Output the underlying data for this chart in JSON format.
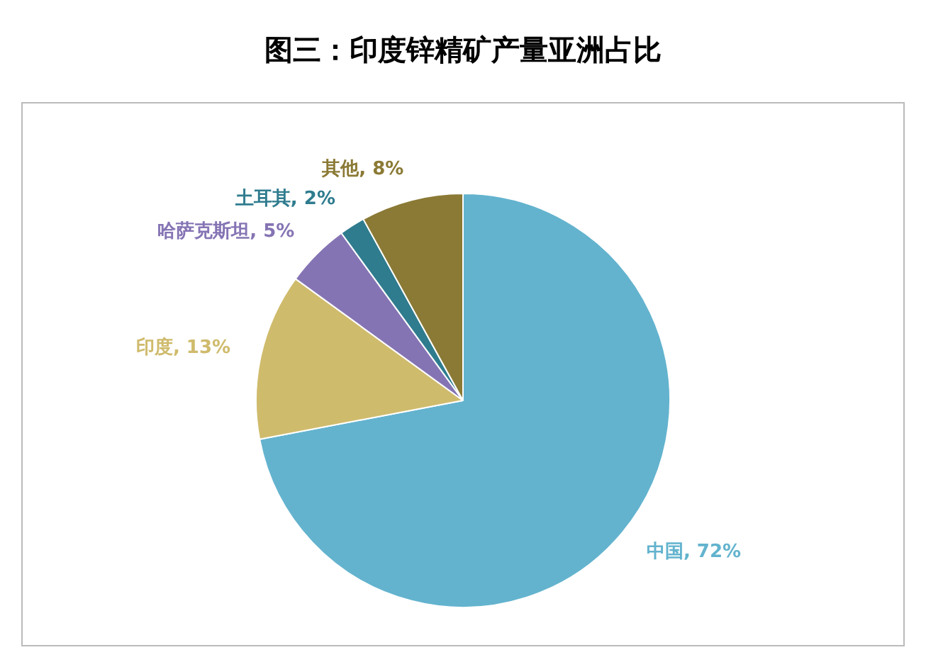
{
  "chart_data": {
    "type": "pie",
    "title": "图三：印度锌精矿产量亚洲占比",
    "categories": [
      "中国",
      "印度",
      "哈萨克斯坦",
      "土耳其",
      "其他"
    ],
    "values": [
      72,
      13,
      5,
      2,
      8
    ],
    "value_labels": [
      "72%",
      "13%",
      "5%",
      "2%",
      "8%"
    ],
    "colors": [
      "#63b3ce",
      "#cfbb6c",
      "#8574b4",
      "#2f7c8e",
      "#8b7a35"
    ],
    "legend": false
  }
}
